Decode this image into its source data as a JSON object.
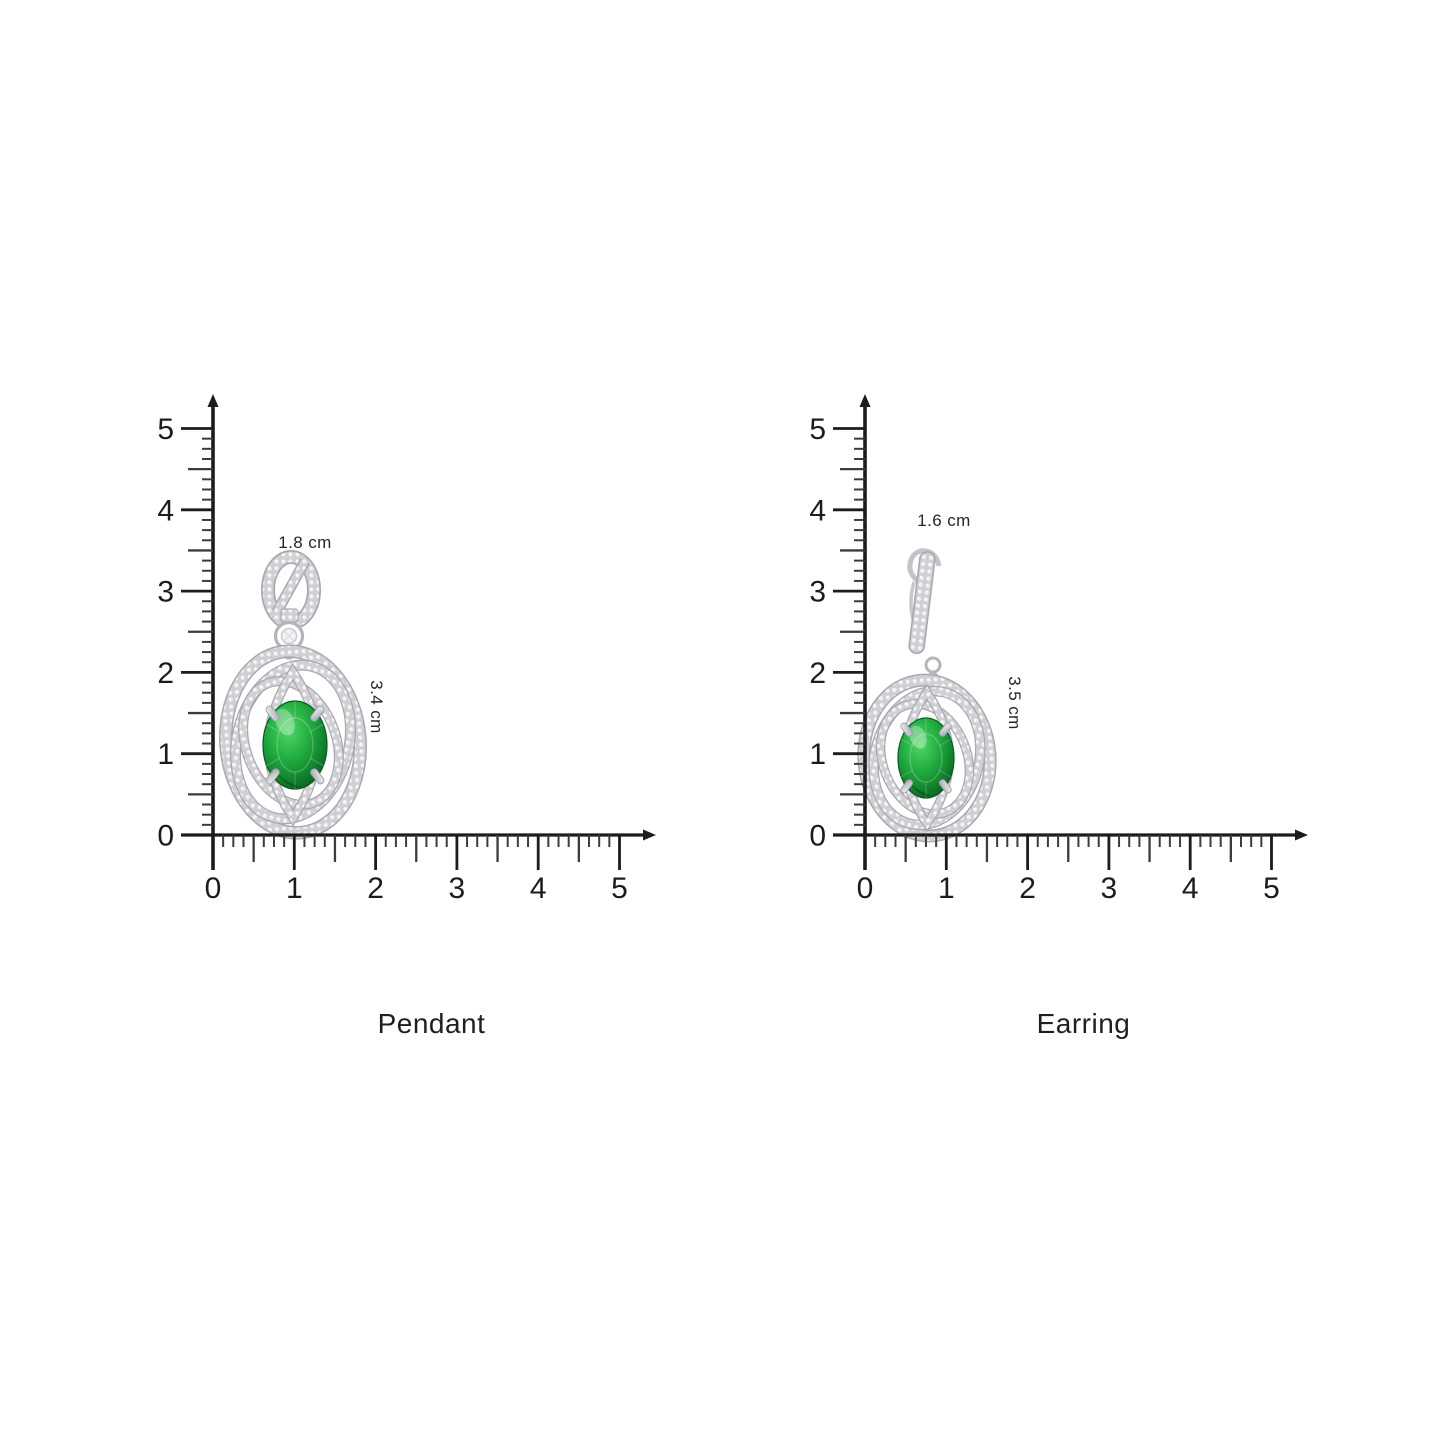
{
  "page": {
    "background": "#ffffff",
    "axis_color": "#1c1c1c",
    "minor_tick_color": "#3c3c3c",
    "caption_color": "#1f1f1f"
  },
  "axes": {
    "unit": "cm",
    "x_range": [
      0,
      5
    ],
    "y_range": [
      0,
      5
    ],
    "subdivisions_per_unit": 8,
    "x_tick_labels": [
      "0",
      "1",
      "2",
      "3",
      "4",
      "5"
    ],
    "y_tick_labels": [
      "0",
      "1",
      "2",
      "3",
      "4",
      "5"
    ]
  },
  "figures": [
    {
      "id": "pendant",
      "label": "Pendant",
      "width_label": "1.8 cm",
      "height_label": "3.4 cm",
      "gem_color": "#12872e",
      "metal_color": "#cfcfd4"
    },
    {
      "id": "earring",
      "label": "Earring",
      "width_label": "1.6 cm",
      "height_label": "3.5 cm",
      "gem_color": "#12872e",
      "metal_color": "#cfcfd4"
    }
  ],
  "measurements": {
    "pendant": {
      "width_cm": 1.8,
      "height_cm": 3.4
    },
    "earring": {
      "width_cm": 1.6,
      "height_cm": 3.5
    }
  }
}
